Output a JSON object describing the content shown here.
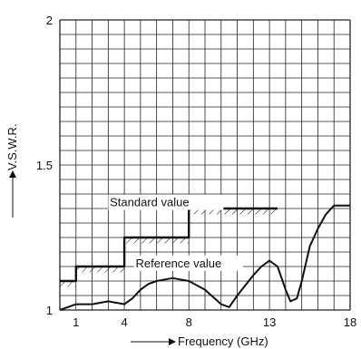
{
  "chart_data": {
    "type": "line",
    "title": "",
    "xlabel": "Frequency (GHz)",
    "ylabel": "V.S.W.R.",
    "xlim": [
      0,
      18
    ],
    "ylim": [
      1,
      2
    ],
    "x_ticks": [
      1,
      4,
      8,
      13,
      18
    ],
    "y_ticks": [
      1,
      1.5,
      2
    ],
    "grid": true,
    "series": [
      {
        "name": "Standard value",
        "style": "step",
        "x": [
          0,
          1,
          1,
          4,
          4,
          8,
          8,
          13.5
        ],
        "values": [
          1.1,
          1.1,
          1.15,
          1.15,
          1.25,
          1.25,
          1.35,
          1.35
        ]
      },
      {
        "name": "Reference value",
        "style": "line",
        "x": [
          0,
          0.5,
          1,
          2,
          3,
          4,
          4.5,
          5,
          5.5,
          6,
          7,
          8,
          9,
          10,
          10.5,
          11,
          12,
          12.5,
          13,
          13.5,
          14,
          14.3,
          14.7,
          15,
          15.5,
          16,
          16.5,
          17,
          17.5,
          18
        ],
        "values": [
          1.0,
          1.01,
          1.02,
          1.02,
          1.03,
          1.02,
          1.04,
          1.07,
          1.09,
          1.1,
          1.11,
          1.1,
          1.07,
          1.02,
          1.01,
          1.05,
          1.12,
          1.15,
          1.17,
          1.15,
          1.07,
          1.03,
          1.04,
          1.1,
          1.22,
          1.28,
          1.33,
          1.36,
          1.36,
          1.36
        ]
      }
    ],
    "annotations": [
      {
        "text": "Standard value"
      },
      {
        "text": "Reference value"
      }
    ]
  }
}
